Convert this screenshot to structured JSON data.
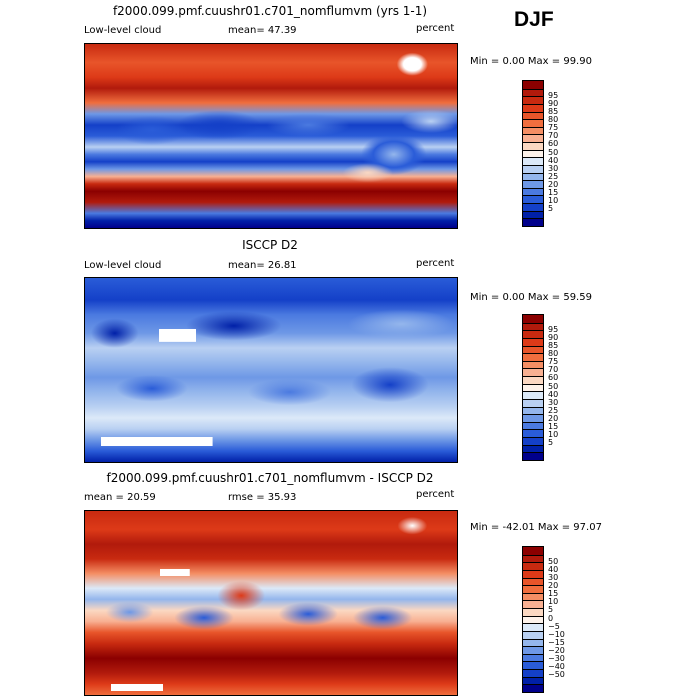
{
  "season": "DJF",
  "panels": [
    {
      "title": "f2000.099.pmf.cuushr01.c701_nomflumvm (yrs 1-1)",
      "left_label": "Low-level cloud",
      "center_label": "mean=  47.39",
      "units": "percent",
      "minmax": "Min =    0.00  Max =   99.90",
      "colorbar": {
        "colors": [
          "#8b0000",
          "#b11a0c",
          "#c82a10",
          "#dd3a18",
          "#e8552a",
          "#f06e3e",
          "#f48e64",
          "#f8b092",
          "#fbd8c2",
          "#fdf2ea",
          "#dce9f8",
          "#b9d0f2",
          "#94b6ec",
          "#6e98e6",
          "#4b7ae0",
          "#2a5cd8",
          "#1440c8",
          "#0020a8",
          "#00008b"
        ],
        "labels": [
          "95",
          "90",
          "85",
          "80",
          "75",
          "70",
          "60",
          "50",
          "40",
          "30",
          "25",
          "20",
          "15",
          "10",
          "5"
        ]
      }
    },
    {
      "title": "ISCCP D2",
      "left_label": "Low-level cloud",
      "center_label": "mean=  26.81",
      "units": "percent",
      "minmax": "Min =    0.00  Max =   59.59",
      "colorbar": {
        "colors": [
          "#8b0000",
          "#b11a0c",
          "#c82a10",
          "#dd3a18",
          "#e8552a",
          "#f06e3e",
          "#f48e64",
          "#f8b092",
          "#fbd8c2",
          "#fdf2ea",
          "#dce9f8",
          "#b9d0f2",
          "#94b6ec",
          "#6e98e6",
          "#4b7ae0",
          "#2a5cd8",
          "#1440c8",
          "#0020a8",
          "#00008b"
        ],
        "labels": [
          "95",
          "90",
          "85",
          "80",
          "75",
          "70",
          "60",
          "50",
          "40",
          "30",
          "25",
          "20",
          "15",
          "10",
          "5"
        ]
      }
    },
    {
      "title": "f2000.099.pmf.cuushr01.c701_nomflumvm - ISCCP D2",
      "left_label": "mean =  20.59",
      "center_label": "rmse =  35.93",
      "units": "percent",
      "minmax": "Min = -42.01  Max =   97.07",
      "colorbar": {
        "colors": [
          "#8b0000",
          "#b11a0c",
          "#c82a10",
          "#dd3a18",
          "#e8552a",
          "#f06e3e",
          "#f48e64",
          "#f8b092",
          "#fbd8c2",
          "#fdf2ea",
          "#dce9f8",
          "#b9d0f2",
          "#94b6ec",
          "#6e98e6",
          "#4b7ae0",
          "#2a5cd8",
          "#1440c8",
          "#0020a8",
          "#00008b"
        ],
        "labels": [
          "50",
          "40",
          "30",
          "20",
          "15",
          "10",
          "5",
          "0",
          "−5",
          "−10",
          "−15",
          "−20",
          "−30",
          "−40",
          "−50"
        ]
      }
    }
  ]
}
